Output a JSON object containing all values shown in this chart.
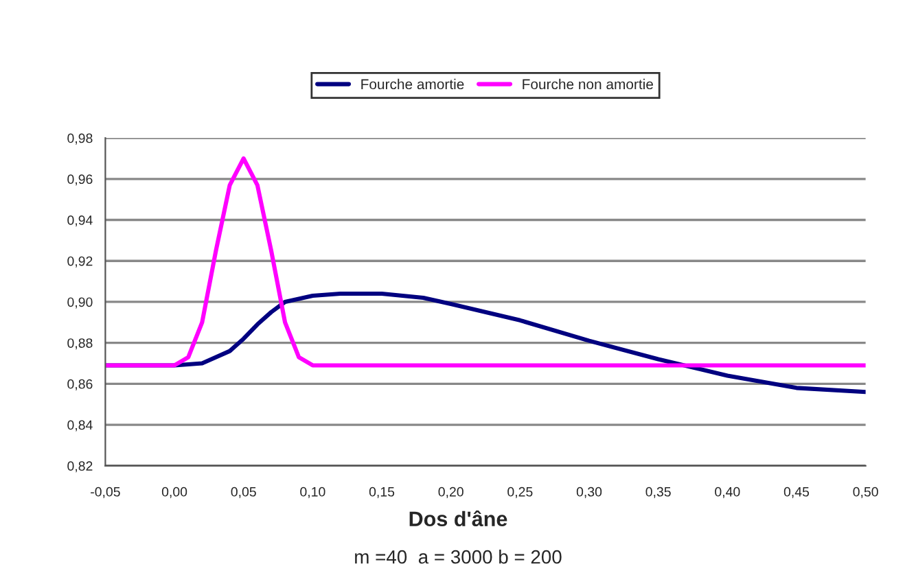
{
  "chart_data": {
    "type": "line",
    "title": "Dos d'âne",
    "subtitle": "m =40  a = 3000 b = 200",
    "xlim": [
      -0.05,
      0.5
    ],
    "xticks": [
      {
        "value": -0.05,
        "label": "-0,05"
      },
      {
        "value": 0,
        "label": "0,00"
      },
      {
        "value": 0.05,
        "label": "0,05"
      },
      {
        "value": 0.1,
        "label": "0,10"
      },
      {
        "value": 0.15,
        "label": "0,15"
      },
      {
        "value": 0.2,
        "label": "0,20"
      },
      {
        "value": 0.25,
        "label": "0,25"
      },
      {
        "value": 0.3,
        "label": "0,30"
      },
      {
        "value": 0.35,
        "label": "0,35"
      },
      {
        "value": 0.4,
        "label": "0,40"
      },
      {
        "value": 0.45,
        "label": "0,45"
      },
      {
        "value": 0.5,
        "label": "0,50"
      }
    ],
    "ylim": [
      0.82,
      0.98
    ],
    "yticks": [
      {
        "value": 0.82,
        "label": "0,82"
      },
      {
        "value": 0.84,
        "label": "0,84"
      },
      {
        "value": 0.86,
        "label": "0,86"
      },
      {
        "value": 0.88,
        "label": "0,88"
      },
      {
        "value": 0.9,
        "label": "0,90"
      },
      {
        "value": 0.92,
        "label": "0,92"
      },
      {
        "value": 0.94,
        "label": "0,94"
      },
      {
        "value": 0.96,
        "label": "0,96"
      },
      {
        "value": 0.98,
        "label": "0,98"
      }
    ],
    "grid": "y",
    "legend": "top",
    "marker": "none",
    "line_style": "solid",
    "series": [
      {
        "name": "Fourche amortie",
        "color": "#000080",
        "x": [
          -0.05,
          0,
          0.02,
          0.04,
          0.05,
          0.06,
          0.07,
          0.08,
          0.1,
          0.12,
          0.15,
          0.18,
          0.2,
          0.25,
          0.3,
          0.35,
          0.4,
          0.45,
          0.5
        ],
        "values": [
          0.869,
          0.869,
          0.87,
          0.876,
          0.882,
          0.889,
          0.895,
          0.9,
          0.903,
          0.904,
          0.904,
          0.902,
          0.899,
          0.891,
          0.881,
          0.872,
          0.864,
          0.858,
          0.856
        ]
      },
      {
        "name": "Fourche non amortie",
        "color": "#ff00ff",
        "x": [
          -0.05,
          0,
          0.01,
          0.02,
          0.03,
          0.04,
          0.05,
          0.06,
          0.07,
          0.08,
          0.09,
          0.1,
          0.5
        ],
        "values": [
          0.869,
          0.869,
          0.873,
          0.89,
          0.925,
          0.957,
          0.97,
          0.957,
          0.925,
          0.89,
          0.873,
          0.869,
          0.869
        ]
      }
    ]
  }
}
